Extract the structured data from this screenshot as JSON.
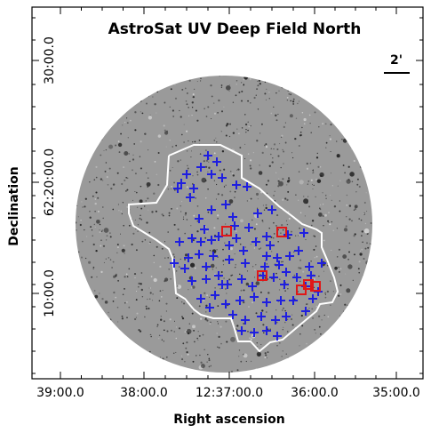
{
  "title": "AstroSat UV Deep Field North",
  "scale_bar": {
    "label": "2'"
  },
  "axes": {
    "xlabel": "Right ascension",
    "ylabel": "Declination",
    "x_ticks": [
      "39:00.0",
      "38:00.0",
      "12:37:00.0",
      "36:00.0",
      "35:00.0"
    ],
    "y_ticks": [
      "30:00.0",
      "62:20:00.0",
      "10:00.0"
    ]
  },
  "colors": {
    "sky": "#9a9a9a",
    "footprint": "#ffffff",
    "sources": "#1f1fe0",
    "highlights": "#e01818"
  },
  "overlay": {
    "blue_cross_sources": 85,
    "red_square_sources": 6
  }
}
